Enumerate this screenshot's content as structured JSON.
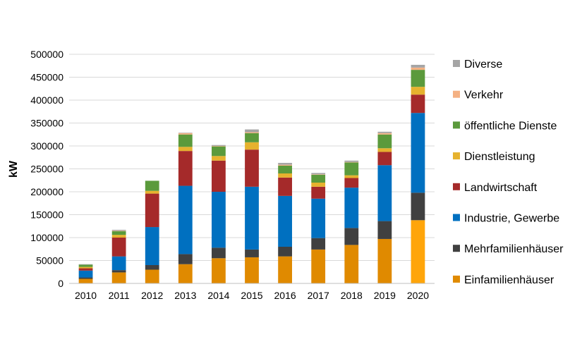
{
  "chart_data": {
    "type": "bar",
    "stacked": true,
    "ylabel": "kW",
    "xlabel": "",
    "ylim": [
      0,
      500000
    ],
    "yticks": [
      0,
      50000,
      100000,
      150000,
      200000,
      250000,
      300000,
      350000,
      400000,
      450000,
      500000
    ],
    "grid": true,
    "legend_position": "right",
    "categories": [
      "2010",
      "2011",
      "2012",
      "2013",
      "2014",
      "2015",
      "2016",
      "2017",
      "2018",
      "2019",
      "2020"
    ],
    "series": [
      {
        "name": "Einfamilienhäuser",
        "color": "#E08A00",
        "values": [
          10000,
          24000,
          30000,
          42000,
          55000,
          57000,
          59000,
          74000,
          84000,
          97000,
          138000
        ]
      },
      {
        "name": "Mehrfamilienhäuser",
        "color": "#404040",
        "values": [
          3000,
          5000,
          10000,
          22000,
          23000,
          17000,
          21000,
          25000,
          37000,
          39000,
          60000
        ]
      },
      {
        "name": "Industrie, Gewerbe",
        "color": "#0070C0",
        "values": [
          15000,
          30000,
          83000,
          149000,
          122000,
          137000,
          111000,
          86000,
          88000,
          122000,
          174000
        ]
      },
      {
        "name": "Landwirtschaft",
        "color": "#A52A2A",
        "values": [
          5000,
          41000,
          73000,
          76000,
          68000,
          81000,
          40000,
          26000,
          21000,
          29000,
          40000
        ]
      },
      {
        "name": "Dienstleistung",
        "color": "#E6B22E",
        "values": [
          3000,
          6000,
          6000,
          9000,
          10000,
          16000,
          9000,
          9000,
          6000,
          8000,
          17000
        ]
      },
      {
        "name": "öffentliche Dienste",
        "color": "#5B9A3C",
        "values": [
          5000,
          8000,
          22000,
          27000,
          21000,
          20000,
          17000,
          17000,
          28000,
          30000,
          37000
        ]
      },
      {
        "name": "Verkehr",
        "color": "#F4B183",
        "values": [
          0,
          1000,
          0,
          3000,
          1000,
          2000,
          2000,
          1000,
          1000,
          3000,
          5000
        ]
      },
      {
        "name": "Diverse",
        "color": "#A5A5A5",
        "values": [
          1000,
          2000,
          0,
          1000,
          2000,
          6000,
          4000,
          3000,
          3000,
          3000,
          6000
        ]
      }
    ]
  }
}
